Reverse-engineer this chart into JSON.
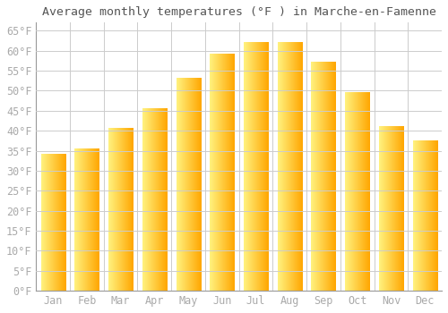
{
  "title": "Average monthly temperatures (°F ) in Marche-en-Famenne",
  "months": [
    "Jan",
    "Feb",
    "Mar",
    "Apr",
    "May",
    "Jun",
    "Jul",
    "Aug",
    "Sep",
    "Oct",
    "Nov",
    "Dec"
  ],
  "values": [
    34,
    35.5,
    40.5,
    45.5,
    53,
    59,
    62,
    62,
    57,
    49.5,
    41,
    37.5
  ],
  "bar_color_left": "#FFD966",
  "bar_color_right": "#FFA500",
  "background_color": "#FFFFFF",
  "grid_color": "#CCCCCC",
  "ylim": [
    0,
    67
  ],
  "yticks": [
    0,
    5,
    10,
    15,
    20,
    25,
    30,
    35,
    40,
    45,
    50,
    55,
    60,
    65
  ],
  "title_fontsize": 9.5,
  "tick_fontsize": 8.5,
  "tick_color": "#AAAAAA",
  "title_color": "#555555"
}
